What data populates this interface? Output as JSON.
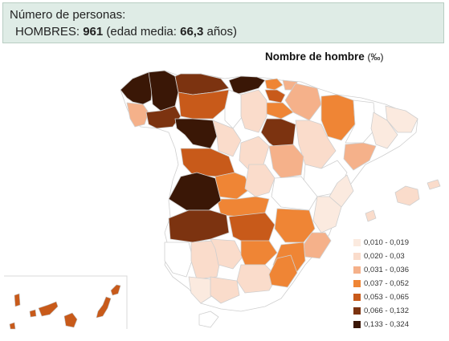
{
  "info": {
    "heading": "Número de personas:",
    "group_label": "HOMBRES:",
    "count": "961",
    "age_prefix": "(edad media:",
    "age_value": "66,3",
    "age_suffix": "años)"
  },
  "map": {
    "title": "Nombre de hombre",
    "unit": "(‰)",
    "legend": [
      {
        "label": "0,010 - 0,019",
        "color": "#fbeadf"
      },
      {
        "label": "0,020 - 0,03",
        "color": "#fadccb"
      },
      {
        "label": "0,031 - 0,036",
        "color": "#f5b18a"
      },
      {
        "label": "0,037 - 0,052",
        "color": "#ef8535"
      },
      {
        "label": "0,053 - 0,065",
        "color": "#c85a1a"
      },
      {
        "label": "0,066 - 0,132",
        "color": "#7c3310"
      },
      {
        "label": "0,133 - 0,324",
        "color": "#3a1706"
      }
    ],
    "no_data_color": "#ffffff",
    "border_color": "#cccccc"
  }
}
